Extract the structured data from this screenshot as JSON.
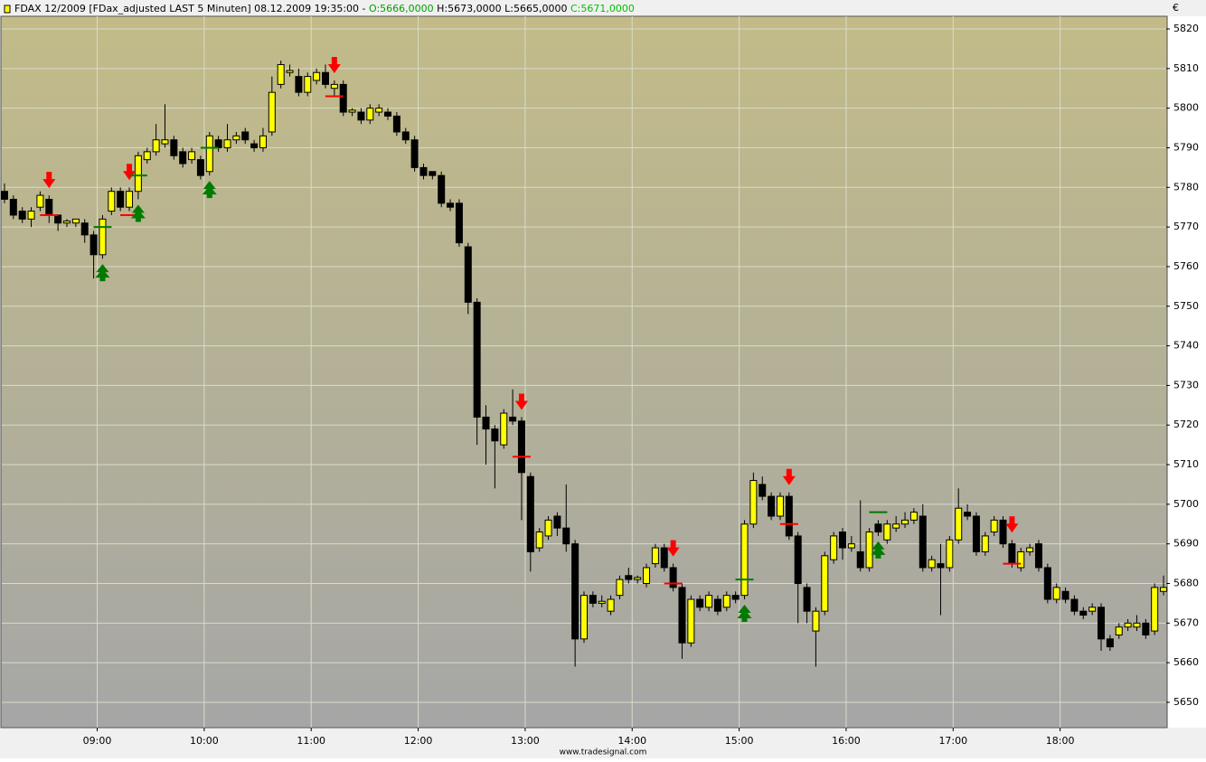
{
  "header": {
    "title": "FDAX 12/2009 [FDax_adjusted LAST 5 Minuten] 08.12.2009 19:35:00 - ",
    "open": "O:5666,0000",
    "high_low": "H:5673,0000 L:5665,0000",
    "close": "C:5671,0000"
  },
  "currency": "€",
  "footer": "www.tradesignal.com",
  "chart_data": {
    "type": "candlestick",
    "open": [
      5779,
      5777,
      5774,
      5772,
      5775,
      5777,
      5773,
      5771,
      5771,
      5771,
      5768,
      5763,
      5774,
      5779,
      5775,
      5779,
      5787,
      5789,
      5791,
      5792,
      5789,
      5787,
      5787,
      5784,
      5792,
      5790,
      5792,
      5794,
      5791,
      5790,
      5794,
      5806,
      5809,
      5808,
      5804,
      5807,
      5809,
      5805,
      5806,
      5799,
      5799,
      5797,
      5799,
      5799,
      5798,
      5794,
      5792,
      5785,
      5784,
      5783,
      5776,
      5776,
      5765,
      5751,
      5722,
      5719,
      5715,
      5722,
      5721,
      5707,
      5689,
      5692,
      5697,
      5694,
      5690,
      5666,
      5677,
      5675,
      5673,
      5677,
      5682,
      5681,
      5680,
      5685,
      5689,
      5684,
      5679,
      5665,
      5676,
      5674,
      5676,
      5674,
      5677,
      5677,
      5695,
      5705,
      5702,
      5697,
      5702,
      5692,
      5679,
      5668,
      5673,
      5686,
      5693,
      5689,
      5688,
      5684,
      5695,
      5691,
      5694,
      5695,
      5696,
      5697,
      5684,
      5685,
      5684,
      5691,
      5698,
      5697,
      5688,
      5693,
      5696,
      5690,
      5684,
      5688,
      5690,
      5684,
      5676,
      5678,
      5676,
      5673,
      5673,
      5674,
      5666,
      5667,
      5669,
      5669,
      5670,
      5668,
      5678
    ],
    "high": [
      5781,
      5778,
      5775,
      5775,
      5779,
      5778,
      5773,
      5772,
      5772,
      5772,
      5769,
      5773,
      5780,
      5780,
      5780,
      5789,
      5790,
      5796,
      5801,
      5793,
      5790,
      5790,
      5788,
      5794,
      5793,
      5796,
      5794,
      5795,
      5792,
      5795,
      5808,
      5812,
      5811,
      5810,
      5809,
      5810,
      5811,
      5807,
      5807,
      5800,
      5800,
      5801,
      5801,
      5800,
      5799,
      5795,
      5793,
      5786,
      5784,
      5784,
      5777,
      5777,
      5766,
      5752,
      5725,
      5720,
      5724,
      5729,
      5722,
      5708,
      5694,
      5697,
      5698,
      5705,
      5691,
      5678,
      5678,
      5677,
      5677,
      5682,
      5684,
      5682,
      5685,
      5690,
      5690,
      5685,
      5680,
      5677,
      5677,
      5678,
      5677,
      5678,
      5678,
      5696,
      5708,
      5707,
      5703,
      5703,
      5703,
      5693,
      5680,
      5674,
      5688,
      5693,
      5694,
      5692,
      5701,
      5694,
      5696,
      5696,
      5697,
      5698,
      5699,
      5700,
      5687,
      5690,
      5692,
      5704,
      5700,
      5698,
      5693,
      5697,
      5697,
      5691,
      5689,
      5690,
      5691,
      5685,
      5680,
      5679,
      5677,
      5674,
      5675,
      5675,
      5667,
      5670,
      5671,
      5672,
      5671,
      5680,
      5682
    ],
    "low": [
      5776,
      5772,
      5771,
      5770,
      5774,
      5771,
      5769,
      5770,
      5770,
      5766,
      5757,
      5762,
      5773,
      5774,
      5774,
      5777,
      5786,
      5788,
      5790,
      5787,
      5785,
      5786,
      5782,
      5783,
      5789,
      5789,
      5791,
      5791,
      5789,
      5789,
      5793,
      5805,
      5808,
      5803,
      5803,
      5806,
      5805,
      5803,
      5798,
      5798,
      5796,
      5796,
      5798,
      5797,
      5793,
      5791,
      5784,
      5782,
      5782,
      5775,
      5774,
      5765,
      5748,
      5715,
      5710,
      5704,
      5714,
      5720,
      5696,
      5683,
      5688,
      5691,
      5692,
      5688,
      5659,
      5665,
      5674,
      5674,
      5672,
      5676,
      5680,
      5680,
      5679,
      5684,
      5683,
      5678,
      5661,
      5664,
      5673,
      5673,
      5672,
      5673,
      5675,
      5676,
      5694,
      5701,
      5696,
      5696,
      5691,
      5670,
      5670,
      5659,
      5672,
      5685,
      5686,
      5688,
      5683,
      5683,
      5692,
      5690,
      5693,
      5694,
      5695,
      5683,
      5683,
      5672,
      5683,
      5690,
      5696,
      5687,
      5687,
      5692,
      5689,
      5684,
      5683,
      5687,
      5683,
      5675,
      5675,
      5675,
      5672,
      5671,
      5672,
      5663,
      5663,
      5666,
      5668,
      5668,
      5666,
      5667,
      5677
    ],
    "close": [
      5777,
      5773,
      5772,
      5774,
      5778,
      5773,
      5771,
      5771.5,
      5772,
      5768,
      5763,
      5772,
      5779,
      5775,
      5779,
      5788,
      5789,
      5792,
      5792,
      5788,
      5786,
      5789,
      5783,
      5793,
      5790,
      5792,
      5793,
      5792,
      5790,
      5793,
      5804,
      5811,
      5809.5,
      5804,
      5808,
      5809,
      5806,
      5806,
      5799,
      5799.5,
      5797,
      5800,
      5800,
      5798,
      5794,
      5792,
      5785,
      5783,
      5783,
      5776,
      5775,
      5766,
      5751,
      5722,
      5719,
      5716,
      5723,
      5721,
      5708,
      5688,
      5693,
      5696,
      5694,
      5690,
      5666,
      5677,
      5675,
      5675.5,
      5676,
      5681,
      5681,
      5681.5,
      5684,
      5689,
      5684,
      5679,
      5665,
      5676,
      5674,
      5677,
      5673,
      5677,
      5676,
      5695,
      5706,
      5702,
      5697,
      5702,
      5692,
      5680,
      5673,
      5673,
      5687,
      5692,
      5689,
      5690,
      5684,
      5693,
      5693,
      5695,
      5695,
      5696,
      5698,
      5684,
      5686,
      5684,
      5691,
      5699,
      5697,
      5688,
      5692,
      5696,
      5690,
      5685,
      5688,
      5689,
      5684,
      5676,
      5679,
      5676,
      5673,
      5672,
      5674,
      5666,
      5664,
      5669,
      5670,
      5670,
      5667,
      5679,
      5679
    ],
    "up_color": "#ffff00",
    "down_color": "#000000",
    "sell_signals": [
      {
        "index": 5,
        "level": 5773
      },
      {
        "index": 14,
        "level": 5773
      },
      {
        "index": 37,
        "level": 5803
      },
      {
        "index": 58,
        "level": 5712
      },
      {
        "index": 75,
        "level": 5680
      },
      {
        "index": 88,
        "level": 5695
      },
      {
        "index": 113,
        "level": 5685
      }
    ],
    "buy_signals": [
      {
        "index": 11,
        "level": 5770
      },
      {
        "index": 15,
        "level": 5783
      },
      {
        "index": 23,
        "level": 5790
      },
      {
        "index": 83,
        "level": 5681
      },
      {
        "index": 98,
        "level": 5698
      }
    ],
    "sell_color": "#ff0000",
    "buy_color": "#007a00",
    "xlim": [
      -0.3,
      130.3
    ],
    "xticks": [
      {
        "value": 10.4,
        "label": "09:00"
      },
      {
        "value": 22.4,
        "label": "10:00"
      },
      {
        "value": 34.4,
        "label": "11:00"
      },
      {
        "value": 46.4,
        "label": "12:00"
      },
      {
        "value": 58.4,
        "label": "13:00"
      },
      {
        "value": 70.4,
        "label": "14:00"
      },
      {
        "value": 82.4,
        "label": "15:00"
      },
      {
        "value": 94.4,
        "label": "16:00"
      },
      {
        "value": 106.4,
        "label": "17:00"
      },
      {
        "value": 118.4,
        "label": "18:00"
      }
    ],
    "ylim": [
      5643.6,
      5823.2
    ],
    "yticks": [
      5650,
      5660,
      5670,
      5680,
      5690,
      5700,
      5710,
      5720,
      5730,
      5740,
      5750,
      5760,
      5770,
      5780,
      5790,
      5800,
      5810,
      5820
    ],
    "grid": true
  }
}
